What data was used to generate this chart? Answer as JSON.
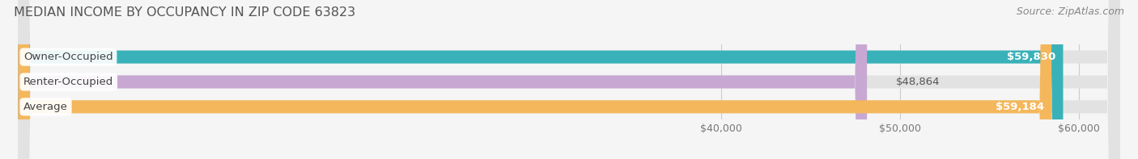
{
  "title": "MEDIAN INCOME BY OCCUPANCY IN ZIP CODE 63823",
  "source": "Source: ZipAtlas.com",
  "categories": [
    "Owner-Occupied",
    "Renter-Occupied",
    "Average"
  ],
  "values": [
    59830,
    48864,
    59184
  ],
  "bar_colors": [
    "#38b2b8",
    "#c8a8d3",
    "#f5b75b"
  ],
  "value_labels": [
    "$59,830",
    "$48,864",
    "$59,184"
  ],
  "value_inside": [
    true,
    false,
    true
  ],
  "xlim_min": 0,
  "xlim_max": 63000,
  "xticks": [
    40000,
    50000,
    60000
  ],
  "xtick_labels": [
    "$40,000",
    "$50,000",
    "$60,000"
  ],
  "bg_color": "#f5f5f5",
  "bar_bg_color": "#e2e2e2",
  "title_fontsize": 11.5,
  "source_fontsize": 9,
  "label_fontsize": 9.5,
  "value_fontsize": 9.5,
  "tick_fontsize": 9,
  "bar_height": 0.52,
  "bar_gap": 0.15,
  "figsize": [
    14.06,
    1.97
  ],
  "dpi": 100
}
